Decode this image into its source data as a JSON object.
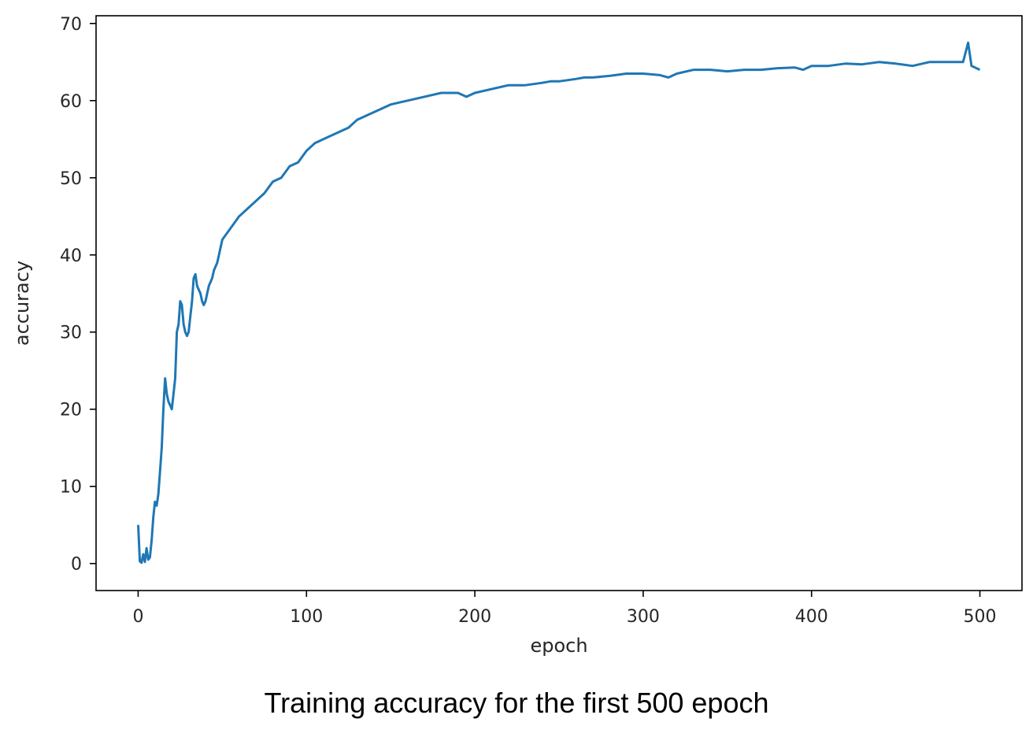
{
  "caption": "Training accuracy for the first 500 epoch",
  "chart_data": {
    "type": "line",
    "title": "",
    "xlabel": "epoch",
    "ylabel": "accuracy",
    "xlim": [
      -25,
      525
    ],
    "ylim": [
      -3.5,
      71
    ],
    "xticks": [
      0,
      100,
      200,
      300,
      400,
      500
    ],
    "yticks": [
      0,
      10,
      20,
      30,
      40,
      50,
      60,
      70
    ],
    "grid": false,
    "legend": "none",
    "line_color": "#1f77b4",
    "series": [
      {
        "name": "",
        "x": [
          0,
          1,
          2,
          3,
          4,
          5,
          6,
          7,
          8,
          9,
          10,
          11,
          12,
          13,
          14,
          15,
          16,
          17,
          18,
          19,
          20,
          21,
          22,
          23,
          24,
          25,
          26,
          27,
          28,
          29,
          30,
          31,
          32,
          33,
          34,
          35,
          36,
          37,
          38,
          39,
          40,
          41,
          42,
          43,
          44,
          45,
          46,
          47,
          48,
          49,
          50,
          55,
          60,
          65,
          70,
          75,
          80,
          85,
          90,
          95,
          100,
          105,
          110,
          115,
          120,
          125,
          130,
          135,
          140,
          145,
          150,
          160,
          170,
          180,
          190,
          195,
          200,
          210,
          220,
          230,
          240,
          245,
          250,
          260,
          265,
          270,
          280,
          290,
          300,
          310,
          315,
          320,
          330,
          340,
          350,
          360,
          370,
          380,
          390,
          395,
          400,
          410,
          420,
          430,
          440,
          450,
          460,
          470,
          480,
          490,
          493,
          495,
          500
        ],
        "y": [
          5,
          0.3,
          0.1,
          1.2,
          0.2,
          2,
          0.5,
          0.8,
          3,
          6,
          8,
          7.5,
          9,
          12,
          15,
          20,
          24,
          22,
          21,
          20.5,
          20,
          22,
          24,
          30,
          31,
          34,
          33.5,
          31,
          30,
          29.5,
          30,
          32,
          34,
          37,
          37.5,
          36,
          35.5,
          35,
          34,
          33.5,
          34,
          35,
          36,
          36.5,
          37,
          38,
          38.5,
          39,
          40,
          41,
          42,
          43.5,
          45,
          46,
          47,
          48,
          49.5,
          50,
          51.5,
          52,
          53.5,
          54.5,
          55,
          55.5,
          56,
          56.5,
          57.5,
          58,
          58.5,
          59,
          59.5,
          60,
          60.5,
          61,
          61,
          60.5,
          61,
          61.5,
          62,
          62,
          62.3,
          62.5,
          62.5,
          62.8,
          63,
          63,
          63.2,
          63.5,
          63.5,
          63.3,
          63,
          63.5,
          64,
          64,
          63.8,
          64,
          64,
          64.2,
          64.3,
          64,
          64.5,
          64.5,
          64.8,
          64.7,
          65,
          64.8,
          64.5,
          65,
          65,
          65,
          67.5,
          64.5,
          64
        ]
      }
    ]
  }
}
